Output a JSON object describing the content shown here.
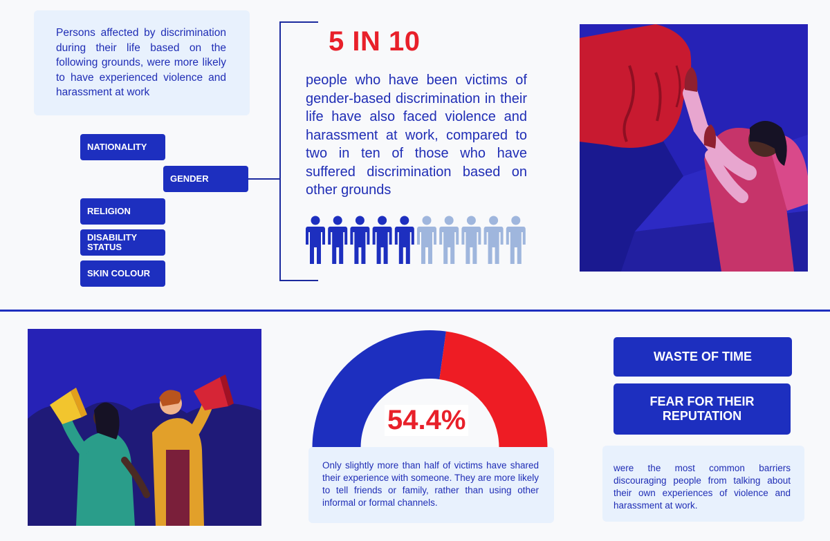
{
  "intro": {
    "text": "Persons affected by discrimination during their life based on the following grounds, were more likely to have experienced violence and harassment at work"
  },
  "grounds": [
    "NATIONALITY",
    "GENDER",
    "RELIGION",
    "DISABILITY STATUS",
    "SKIN COLOUR"
  ],
  "highlight": {
    "stat": "5 IN 10",
    "description": "people who have been victims of gender-based discrimination in their life have also faced violence and harassment at work, compared to two in ten of those who have suffered discrimination based on other grounds",
    "icons_total": 10,
    "icons_filled": 5,
    "filled_color": "#1d2fbf",
    "empty_color": "#9fb6dd"
  },
  "sharing": {
    "percent_label": "54.4%",
    "percent_value": 54.4,
    "shared_color": "#1d2fbf",
    "not_shared_color": "#ee1c24",
    "description": "Only slightly more than half of victims have shared their experience with someone. They are more likely to tell friends or family, rather than using other informal or formal channels."
  },
  "barriers": {
    "items": [
      "WASTE OF TIME",
      "FEAR FOR THEIR REPUTATION"
    ],
    "description": "were the most common barriers discouraging people from talking about their own experiences of violence and harassment at work."
  },
  "illustrations": {
    "top": "fist-and-raised-hands-illustration",
    "bottom": "people-with-megaphones-illustration"
  }
}
